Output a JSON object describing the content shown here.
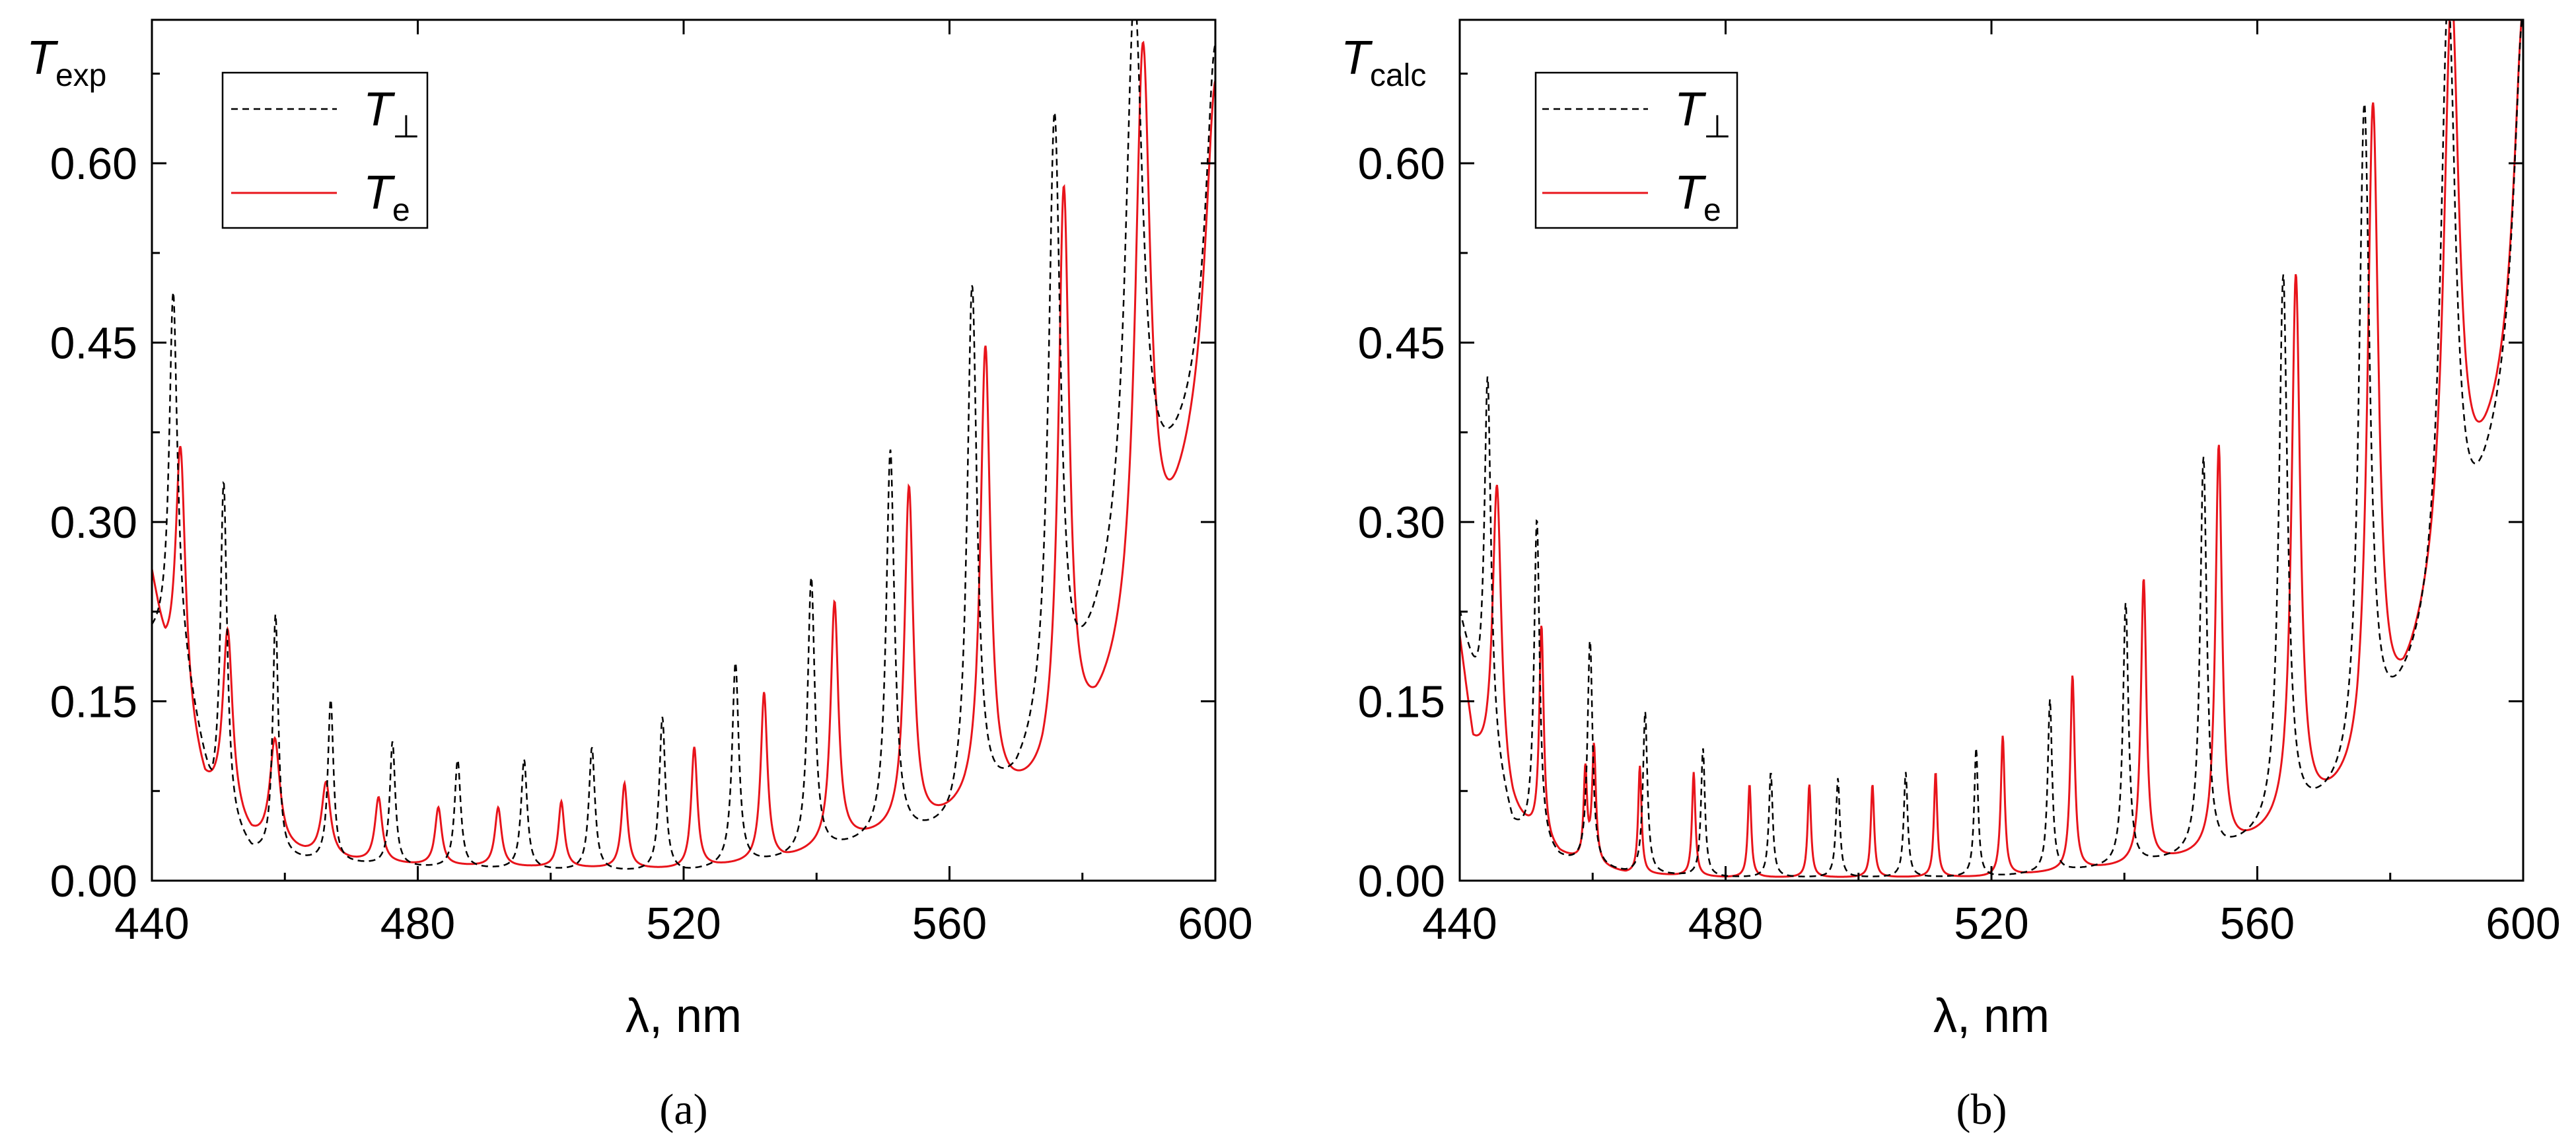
{
  "chart_data": [
    {
      "type": "line",
      "panel_label": "(a)",
      "ylabel_main": "T",
      "ylabel_sub": "exp",
      "xlabel": "λ, nm",
      "xlim": [
        440,
        600
      ],
      "ylim": [
        0,
        0.72
      ],
      "xticks": [
        440,
        480,
        520,
        560,
        600
      ],
      "xtick_labels": [
        "440",
        "480",
        "520",
        "560",
        "600"
      ],
      "yticks": [
        0,
        0.15,
        0.3,
        0.45,
        0.6
      ],
      "ytick_labels": [
        "0.00",
        "0.15",
        "0.30",
        "0.45",
        "0.60"
      ],
      "legend_location": "top-left",
      "series": [
        {
          "name": "T⊥",
          "legend_main": "T",
          "legend_sub": "⊥",
          "style": "dashed-black",
          "baseline": [
            [
              440,
              0.2
            ],
            [
              444,
              0.2
            ],
            [
              449,
              0.06
            ],
            [
              455,
              0.02
            ],
            [
              463,
              0.015
            ],
            [
              480,
              0.01
            ],
            [
              520,
              0.005
            ],
            [
              535,
              0.015
            ],
            [
              550,
              0.03
            ],
            [
              560,
              0.035
            ],
            [
              570,
              0.07
            ],
            [
              578,
              0.13
            ],
            [
              584,
              0.21
            ],
            [
              600,
              0.4
            ]
          ],
          "peaks": [
            [
              443.2,
              0.49,
              0.7
            ],
            [
              450.8,
              0.33,
              0.6
            ],
            [
              458.6,
              0.22,
              0.5
            ],
            [
              466.9,
              0.15,
              0.5
            ],
            [
              476.2,
              0.115,
              0.5
            ],
            [
              486,
              0.1,
              0.55
            ],
            [
              496,
              0.1,
              0.55
            ],
            [
              506.2,
              0.11,
              0.55
            ],
            [
              516.8,
              0.135,
              0.55
            ],
            [
              527.8,
              0.18,
              0.6
            ],
            [
              539.2,
              0.25,
              0.65
            ],
            [
              551.1,
              0.355,
              0.75
            ],
            [
              563.4,
              0.49,
              0.9
            ],
            [
              575.8,
              0.63,
              1.1
            ],
            [
              587.8,
              0.73,
              1.6
            ],
            [
              600,
              0.69,
              1.8
            ]
          ]
        },
        {
          "name": "Te",
          "legend_main": "T",
          "legend_sub": "e",
          "style": "solid-red",
          "baseline": [
            [
              440,
              0.25
            ],
            [
              442,
              0.18
            ],
            [
              448,
              0.07
            ],
            [
              455,
              0.03
            ],
            [
              463,
              0.02
            ],
            [
              470,
              0.015
            ],
            [
              480,
              0.012
            ],
            [
              520,
              0.008
            ],
            [
              535,
              0.015
            ],
            [
              545,
              0.03
            ],
            [
              556,
              0.04
            ],
            [
              566,
              0.06
            ],
            [
              574,
              0.07
            ],
            [
              582,
              0.12
            ],
            [
              590,
              0.2
            ],
            [
              600,
              0.4
            ]
          ],
          "peaks": [
            [
              444.3,
              0.36,
              0.9
            ],
            [
              451.4,
              0.205,
              0.9
            ],
            [
              458.5,
              0.115,
              0.9
            ],
            [
              466.2,
              0.08,
              0.8
            ],
            [
              474.1,
              0.068,
              0.65
            ],
            [
              483.1,
              0.06,
              0.6
            ],
            [
              492.1,
              0.06,
              0.6
            ],
            [
              501.6,
              0.065,
              0.55
            ],
            [
              511.1,
              0.08,
              0.55
            ],
            [
              521.6,
              0.11,
              0.55
            ],
            [
              532.1,
              0.155,
              0.6
            ],
            [
              542.7,
              0.23,
              0.7
            ],
            [
              553.9,
              0.325,
              0.8
            ],
            [
              565.4,
              0.44,
              0.9
            ],
            [
              577.2,
              0.57,
              1.0
            ],
            [
              589.1,
              0.69,
              1.4
            ],
            [
              600,
              0.66,
              1.8
            ]
          ]
        }
      ]
    },
    {
      "type": "line",
      "panel_label": "(b)",
      "ylabel_main": "T",
      "ylabel_sub": "calc",
      "xlabel": "λ, nm",
      "xlim": [
        440,
        600
      ],
      "ylim": [
        0,
        0.72
      ],
      "xticks": [
        440,
        480,
        520,
        560,
        600
      ],
      "xtick_labels": [
        "440",
        "480",
        "520",
        "560",
        "600"
      ],
      "yticks": [
        0,
        0.15,
        0.3,
        0.45,
        0.6
      ],
      "ytick_labels": [
        "0.00",
        "0.15",
        "0.30",
        "0.45",
        "0.60"
      ],
      "legend_location": "top-left",
      "series": [
        {
          "name": "T⊥",
          "legend_main": "T",
          "legend_sub": "⊥",
          "style": "dashed-black",
          "baseline": [
            [
              440,
              0.22
            ],
            [
              443,
              0.14
            ],
            [
              448,
              0.04
            ],
            [
              455,
              0.015
            ],
            [
              465,
              0.005
            ],
            [
              480,
              0.002
            ],
            [
              520,
              0.002
            ],
            [
              540,
              0.01
            ],
            [
              555,
              0.02
            ],
            [
              565,
              0.04
            ],
            [
              575,
              0.07
            ],
            [
              582,
              0.14
            ],
            [
              590,
              0.22
            ],
            [
              600,
              0.42
            ]
          ],
          "peaks": [
            [
              444.2,
              0.42,
              0.6
            ],
            [
              451.6,
              0.3,
              0.5
            ],
            [
              459.6,
              0.2,
              0.45
            ],
            [
              467.9,
              0.14,
              0.4
            ],
            [
              476.6,
              0.11,
              0.35
            ],
            [
              486.8,
              0.09,
              0.35
            ],
            [
              496.9,
              0.085,
              0.35
            ],
            [
              507.1,
              0.09,
              0.35
            ],
            [
              517.7,
              0.11,
              0.35
            ],
            [
              528.8,
              0.15,
              0.4
            ],
            [
              540.2,
              0.23,
              0.5
            ],
            [
              551.9,
              0.35,
              0.6
            ],
            [
              563.9,
              0.5,
              0.8
            ],
            [
              576.1,
              0.64,
              1.0
            ],
            [
              588.7,
              0.73,
              1.4
            ],
            [
              600,
              0.72,
              1.7
            ]
          ]
        },
        {
          "name": "Te",
          "legend_main": "T",
          "legend_sub": "e",
          "style": "solid-red",
          "baseline": [
            [
              440,
              0.2
            ],
            [
              442,
              0.11
            ],
            [
              448,
              0.05
            ],
            [
              455,
              0.02
            ],
            [
              465,
              0.005
            ],
            [
              480,
              0.002
            ],
            [
              520,
              0.002
            ],
            [
              540,
              0.01
            ],
            [
              555,
              0.02
            ],
            [
              565,
              0.04
            ],
            [
              575,
              0.07
            ],
            [
              582,
              0.14
            ],
            [
              590,
              0.26
            ],
            [
              600,
              0.42
            ]
          ],
          "peaks": [
            [
              445.6,
              0.33,
              0.8
            ],
            [
              452.3,
              0.21,
              0.4
            ],
            [
              458.9,
              0.09,
              0.3
            ],
            [
              460.2,
              0.11,
              0.35
            ],
            [
              467.1,
              0.095,
              0.3
            ],
            [
              475.2,
              0.09,
              0.3
            ],
            [
              483.6,
              0.08,
              0.3
            ],
            [
              492.6,
              0.08,
              0.3
            ],
            [
              502.1,
              0.08,
              0.3
            ],
            [
              511.6,
              0.09,
              0.3
            ],
            [
              521.7,
              0.12,
              0.35
            ],
            [
              532.2,
              0.17,
              0.4
            ],
            [
              542.9,
              0.25,
              0.5
            ],
            [
              554.2,
              0.36,
              0.6
            ],
            [
              565.8,
              0.5,
              0.8
            ],
            [
              577.4,
              0.64,
              1.0
            ],
            [
              589.2,
              0.73,
              1.4
            ],
            [
              600,
              0.72,
              1.7
            ]
          ]
        }
      ]
    }
  ]
}
